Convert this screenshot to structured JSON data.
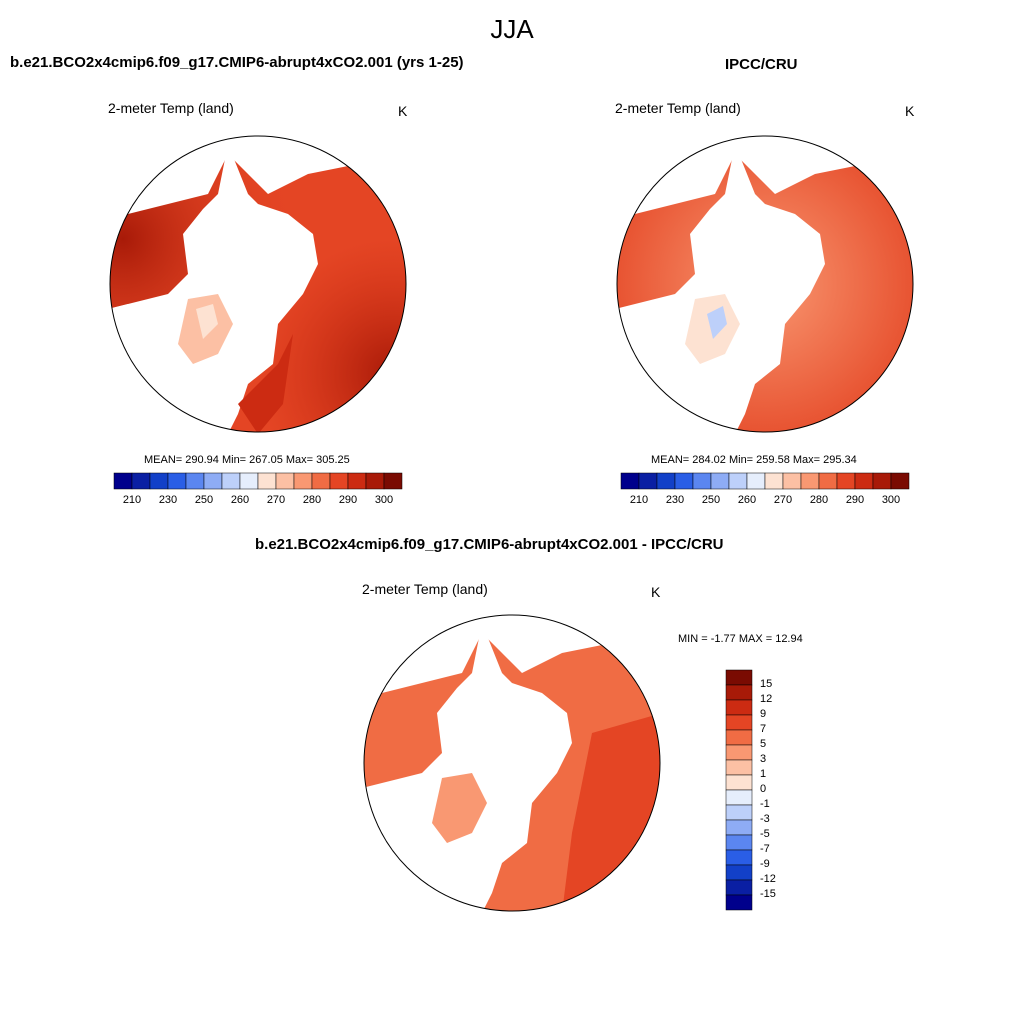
{
  "figure_title": "JJA",
  "panels": {
    "model": {
      "title": "b.e21.BCO2x4cmip6.f09_g17.CMIP6-abrupt4xCO2.001 (yrs 1-25)",
      "variable": "2-meter Temp (land)",
      "unit": "K",
      "stats": "MEAN= 290.94  Min= 267.05  Max= 305.25"
    },
    "obs": {
      "title": "IPCC/CRU",
      "variable": "2-meter Temp (land)",
      "unit": "K",
      "stats": "MEAN= 284.02  Min= 259.58  Max= 295.34"
    },
    "diff": {
      "title": "b.e21.BCO2x4cmip6.f09_g17.CMIP6-abrupt4xCO2.001 - IPCC/CRU",
      "variable": "2-meter Temp (land)",
      "unit": "K",
      "stats": "MIN =  -1.77 MAX =  12.94"
    }
  },
  "abs_colorbar": {
    "colors": [
      "#00008c",
      "#0a1fa3",
      "#1240c8",
      "#2a5ee6",
      "#5b86f0",
      "#8eacf5",
      "#bdd0fa",
      "#e6eefc",
      "#fde2d2",
      "#fcc0a4",
      "#f99872",
      "#f06c44",
      "#e44524",
      "#cc2b12",
      "#a81a08",
      "#7a0b02"
    ],
    "tick_labels": [
      "210",
      "230",
      "250",
      "260",
      "270",
      "280",
      "290",
      "300"
    ]
  },
  "diff_colorbar": {
    "colors": [
      "#7a0b02",
      "#a81a08",
      "#cc2b12",
      "#e44524",
      "#f06c44",
      "#f99872",
      "#fcc0a4",
      "#fde2d2",
      "#e6eefc",
      "#bdd0fa",
      "#8eacf5",
      "#5b86f0",
      "#2a5ee6",
      "#1240c8",
      "#0a1fa3",
      "#00008c"
    ],
    "tick_labels": [
      "15",
      "12",
      "9",
      "7",
      "5",
      "3",
      "1",
      "0",
      "-1",
      "-3",
      "-5",
      "-7",
      "-9",
      "-12",
      "-15"
    ]
  }
}
